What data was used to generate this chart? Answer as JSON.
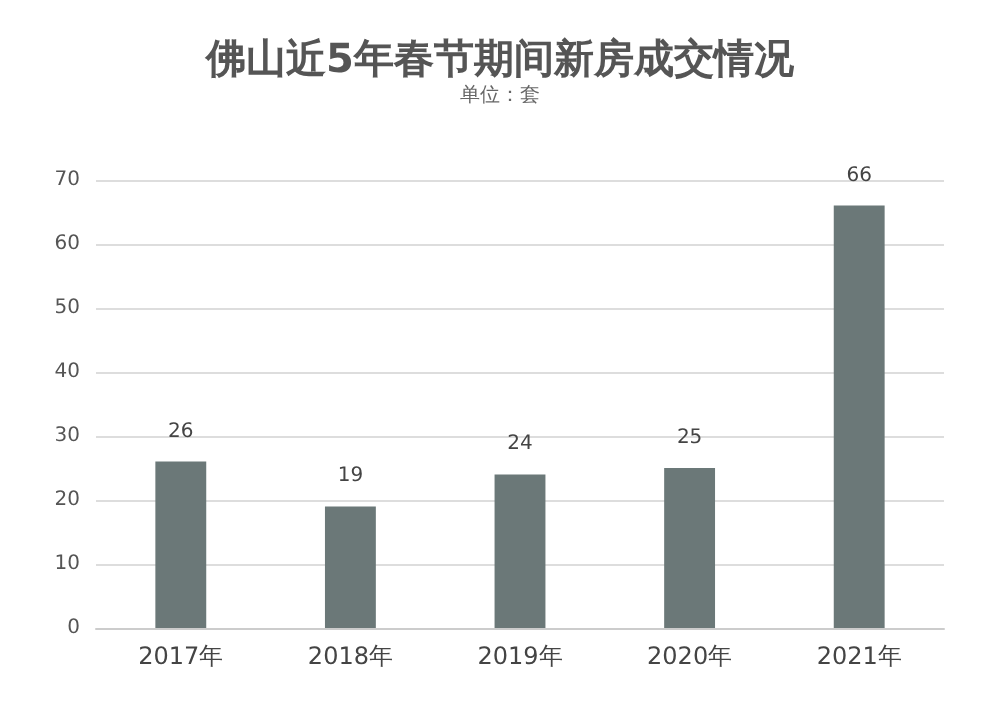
{
  "chart_data": {
    "type": "bar",
    "title": "佛山近5年春节期间新房成交情况",
    "subtitle": "单位：套",
    "categories": [
      "2017年",
      "2018年",
      "2019年",
      "2020年",
      "2021年"
    ],
    "values": [
      26,
      19,
      24,
      25,
      66
    ],
    "color": "#6b7878",
    "ylim": [
      0,
      70
    ],
    "yticks": [
      0,
      10,
      20,
      30,
      40,
      50,
      60,
      70
    ],
    "grid": "y",
    "data_labels": true
  }
}
